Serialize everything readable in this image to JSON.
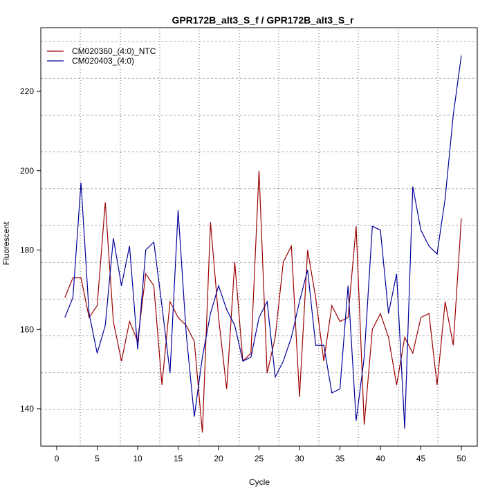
{
  "chart_data": {
    "type": "line",
    "title": "GPR172B_alt3_S_f / GPR172B_alt3_S_r",
    "xlabel": "Cycle",
    "ylabel": "Fluorescent",
    "xlim": [
      -2,
      52
    ],
    "ylim": [
      130.5,
      233
    ],
    "xticks": [
      0,
      5,
      10,
      15,
      20,
      25,
      30,
      35,
      40,
      45,
      50
    ],
    "yticks": [
      140,
      160,
      180,
      200,
      220
    ],
    "grid": true,
    "legend_position": "top-left",
    "series": [
      {
        "name": "CM020360_(4:0)_NTC",
        "color": "#9b0000",
        "x": [
          1,
          2,
          3,
          4,
          5,
          6,
          7,
          8,
          9,
          10,
          11,
          12,
          13,
          14,
          15,
          16,
          17,
          18,
          19,
          20,
          21,
          22,
          23,
          24,
          25,
          26,
          27,
          28,
          29,
          30,
          31,
          32,
          33,
          34,
          35,
          36,
          37,
          38,
          39,
          40,
          41,
          42,
          43,
          44,
          45,
          46,
          47,
          48,
          49,
          50
        ],
        "values": [
          168,
          173,
          173,
          163,
          166,
          192,
          162,
          152,
          162,
          157,
          174,
          171,
          146,
          167,
          163,
          161,
          157,
          134,
          187,
          163,
          145,
          177,
          152,
          154,
          200,
          149,
          158,
          177,
          181,
          143,
          180,
          168,
          152,
          166,
          162,
          163,
          186,
          136,
          160,
          164,
          158,
          146,
          158,
          154,
          163,
          164,
          146,
          167,
          156,
          188
        ]
      },
      {
        "name": "CM020403_(4:0)",
        "color": "#00009b",
        "x": [
          1,
          2,
          3,
          4,
          5,
          6,
          7,
          8,
          9,
          10,
          11,
          12,
          13,
          14,
          15,
          16,
          17,
          18,
          19,
          20,
          21,
          22,
          23,
          24,
          25,
          26,
          27,
          28,
          29,
          30,
          31,
          32,
          33,
          34,
          35,
          36,
          37,
          38,
          39,
          40,
          41,
          42,
          43,
          44,
          45,
          46,
          47,
          48,
          49,
          50
        ],
        "values": [
          163,
          168,
          197,
          164,
          154,
          161,
          183,
          171,
          181,
          155,
          180,
          182,
          166,
          149,
          190,
          159,
          138,
          153,
          164,
          171,
          165,
          161,
          152,
          153,
          163,
          167,
          148,
          152,
          158,
          167,
          175,
          156,
          156,
          144,
          145,
          171,
          137,
          153,
          186,
          185,
          164,
          174,
          135,
          196,
          185,
          181,
          179,
          193,
          214,
          229
        ]
      }
    ]
  }
}
